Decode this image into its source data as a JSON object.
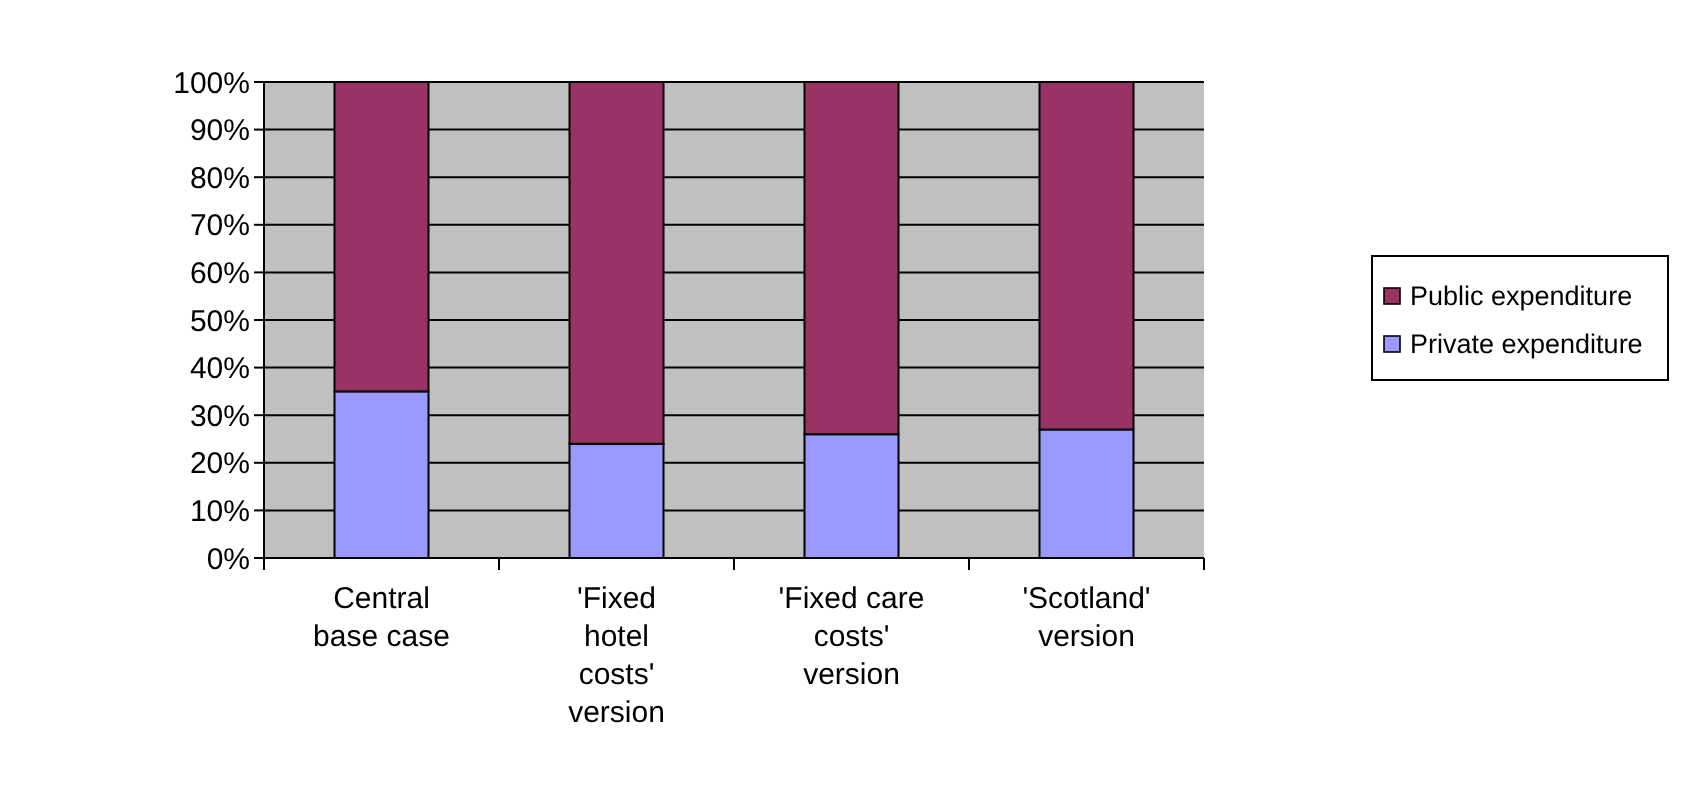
{
  "chart_data": {
    "type": "bar",
    "stacked": true,
    "categories": [
      "Central base case",
      "'Fixed hotel costs' version",
      "'Fixed care costs' version",
      "'Scotland' version"
    ],
    "series": [
      {
        "name": "Private expenditure",
        "color": "#9999ff",
        "values": [
          35,
          24,
          26,
          27
        ]
      },
      {
        "name": "Public expenditure",
        "color": "#993366",
        "values": [
          65,
          76,
          74,
          73
        ]
      }
    ],
    "ylim": [
      0,
      100
    ],
    "yticks": [
      {
        "value": 0,
        "label": "0%"
      },
      {
        "value": 10,
        "label": "10%"
      },
      {
        "value": 20,
        "label": "20%"
      },
      {
        "value": 30,
        "label": "30%"
      },
      {
        "value": 40,
        "label": "40%"
      },
      {
        "value": 50,
        "label": "50%"
      },
      {
        "value": 60,
        "label": "60%"
      },
      {
        "value": 70,
        "label": "70%"
      },
      {
        "value": 80,
        "label": "80%"
      },
      {
        "value": 90,
        "label": "90%"
      },
      {
        "value": 100,
        "label": "100%"
      }
    ],
    "grid": "y",
    "legend": "right"
  }
}
